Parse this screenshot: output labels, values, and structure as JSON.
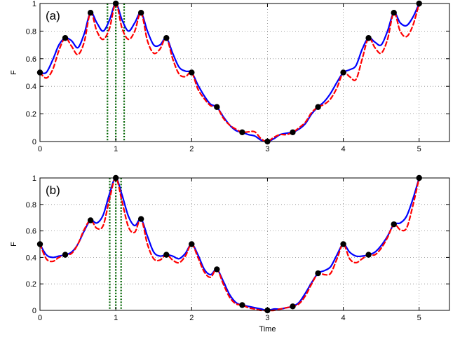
{
  "chart_data": [
    {
      "type": "line",
      "panel_label": "(a)",
      "xlabel": "",
      "ylabel": "F",
      "xlim": [
        0,
        5.4
      ],
      "ylim": [
        0,
        1
      ],
      "xticks": [
        "0",
        "1",
        "2",
        "3",
        "4",
        "5"
      ],
      "yticks": [
        "0",
        "0.2",
        "0.4",
        "0.6",
        "0.8",
        "1"
      ],
      "grid": true,
      "colors": {
        "solid": "#0000ff",
        "dashed": "#ff0000",
        "points": "#000000",
        "vlines": "#006400"
      },
      "points": {
        "x": [
          0,
          0.333,
          0.667,
          1,
          1.333,
          1.667,
          2,
          2.333,
          2.667,
          3,
          3.333,
          3.667,
          4,
          4.333,
          4.667,
          5
        ],
        "y": [
          0.5,
          0.75,
          0.933,
          1,
          0.933,
          0.75,
          0.5,
          0.25,
          0.067,
          0,
          0.067,
          0.25,
          0.5,
          0.75,
          0.933,
          1
        ]
      },
      "series": [
        {
          "style": "solid",
          "x": [
            0,
            0.083,
            0.167,
            0.25,
            0.333,
            0.417,
            0.5,
            0.583,
            0.667,
            0.75,
            0.833,
            0.917,
            1,
            1.083,
            1.167,
            1.25,
            1.333,
            1.417,
            1.5,
            1.583,
            1.667,
            1.75,
            1.833,
            1.917,
            2,
            2.083,
            2.167,
            2.25,
            2.333,
            2.417,
            2.5,
            2.583,
            2.667,
            2.75,
            2.833,
            2.917,
            3,
            3.083,
            3.167,
            3.25,
            3.333,
            3.417,
            3.5,
            3.583,
            3.667,
            3.75,
            3.833,
            3.917,
            4,
            4.083,
            4.167,
            4.25,
            4.333,
            4.417,
            4.5,
            4.583,
            4.667,
            4.75,
            4.833,
            4.917,
            5
          ],
          "y": [
            0.5,
            0.5,
            0.59,
            0.7,
            0.75,
            0.73,
            0.68,
            0.78,
            0.933,
            0.86,
            0.8,
            0.88,
            1,
            0.88,
            0.8,
            0.86,
            0.933,
            0.8,
            0.7,
            0.7,
            0.75,
            0.64,
            0.54,
            0.51,
            0.5,
            0.41,
            0.33,
            0.27,
            0.25,
            0.18,
            0.12,
            0.08,
            0.067,
            0.05,
            0.04,
            0.01,
            0,
            0.02,
            0.05,
            0.06,
            0.067,
            0.09,
            0.13,
            0.2,
            0.25,
            0.29,
            0.35,
            0.43,
            0.5,
            0.52,
            0.55,
            0.67,
            0.75,
            0.72,
            0.7,
            0.8,
            0.933,
            0.86,
            0.84,
            0.9,
            1
          ]
        },
        {
          "style": "dashed",
          "x": [
            0,
            0.083,
            0.167,
            0.25,
            0.333,
            0.417,
            0.5,
            0.583,
            0.667,
            0.75,
            0.833,
            0.917,
            1,
            1.083,
            1.167,
            1.25,
            1.333,
            1.417,
            1.5,
            1.583,
            1.667,
            1.75,
            1.833,
            1.917,
            2,
            2.083,
            2.167,
            2.25,
            2.333,
            2.417,
            2.5,
            2.583,
            2.667,
            2.75,
            2.833,
            2.917,
            3,
            3.083,
            3.167,
            3.25,
            3.333,
            3.417,
            3.5,
            3.583,
            3.667,
            3.75,
            3.833,
            3.917,
            4,
            4.083,
            4.167,
            4.25,
            4.333,
            4.417,
            4.5,
            4.583,
            4.667,
            4.75,
            4.833,
            4.917,
            5
          ],
          "y": [
            0.5,
            0.46,
            0.52,
            0.66,
            0.75,
            0.69,
            0.63,
            0.72,
            0.933,
            0.8,
            0.74,
            0.82,
            1,
            0.82,
            0.74,
            0.8,
            0.933,
            0.73,
            0.64,
            0.67,
            0.75,
            0.6,
            0.49,
            0.47,
            0.5,
            0.38,
            0.31,
            0.26,
            0.25,
            0.17,
            0.12,
            0.09,
            0.067,
            0.07,
            0.07,
            0.02,
            0,
            0.03,
            0.05,
            0.05,
            0.067,
            0.1,
            0.14,
            0.21,
            0.25,
            0.27,
            0.31,
            0.39,
            0.5,
            0.47,
            0.45,
            0.6,
            0.75,
            0.68,
            0.64,
            0.74,
            0.933,
            0.8,
            0.76,
            0.84,
            1
          ]
        }
      ],
      "vlines": [
        0.89,
        1,
        1.11
      ]
    },
    {
      "type": "line",
      "panel_label": "(b)",
      "xlabel": "Time",
      "ylabel": "F",
      "xlim": [
        0,
        5.4
      ],
      "ylim": [
        0,
        1
      ],
      "xticks": [
        "0",
        "1",
        "2",
        "3",
        "4",
        "5"
      ],
      "yticks": [
        "0",
        "0.2",
        "0.4",
        "0.6",
        "0.8",
        "1"
      ],
      "grid": true,
      "colors": {
        "solid": "#0000ff",
        "dashed": "#ff0000",
        "points": "#000000",
        "vlines": "#006400"
      },
      "points": {
        "x": [
          0,
          0.333,
          0.667,
          1,
          1.333,
          1.667,
          2,
          2.333,
          2.667,
          3,
          3.333,
          3.667,
          4,
          4.333,
          4.667,
          5
        ],
        "y": [
          0.5,
          0.42,
          0.68,
          1,
          0.69,
          0.42,
          0.5,
          0.31,
          0.04,
          0,
          0.03,
          0.28,
          0.5,
          0.42,
          0.65,
          1
        ]
      },
      "series": [
        {
          "style": "solid",
          "x": [
            0,
            0.083,
            0.167,
            0.25,
            0.333,
            0.417,
            0.5,
            0.583,
            0.667,
            0.75,
            0.833,
            0.917,
            1,
            1.083,
            1.167,
            1.25,
            1.333,
            1.417,
            1.5,
            1.583,
            1.667,
            1.75,
            1.833,
            1.917,
            2,
            2.083,
            2.167,
            2.25,
            2.333,
            2.417,
            2.5,
            2.583,
            2.667,
            2.75,
            2.833,
            2.917,
            3,
            3.083,
            3.167,
            3.25,
            3.333,
            3.417,
            3.5,
            3.583,
            3.667,
            3.75,
            3.833,
            3.917,
            4,
            4.083,
            4.167,
            4.25,
            4.333,
            4.417,
            4.5,
            4.583,
            4.667,
            4.75,
            4.833,
            4.917,
            5
          ],
          "y": [
            0.5,
            0.42,
            0.4,
            0.41,
            0.42,
            0.44,
            0.5,
            0.6,
            0.68,
            0.66,
            0.72,
            0.88,
            1,
            0.87,
            0.71,
            0.64,
            0.69,
            0.56,
            0.44,
            0.41,
            0.42,
            0.41,
            0.39,
            0.43,
            0.5,
            0.42,
            0.31,
            0.27,
            0.31,
            0.22,
            0.12,
            0.06,
            0.04,
            0.03,
            0.02,
            0.01,
            0,
            0.01,
            0.01,
            0.02,
            0.03,
            0.06,
            0.13,
            0.21,
            0.28,
            0.3,
            0.33,
            0.42,
            0.5,
            0.44,
            0.41,
            0.41,
            0.42,
            0.44,
            0.49,
            0.56,
            0.65,
            0.66,
            0.71,
            0.84,
            1
          ]
        },
        {
          "style": "dashed",
          "x": [
            0,
            0.083,
            0.167,
            0.25,
            0.333,
            0.417,
            0.5,
            0.583,
            0.667,
            0.75,
            0.833,
            0.917,
            1,
            1.083,
            1.167,
            1.25,
            1.333,
            1.417,
            1.5,
            1.583,
            1.667,
            1.75,
            1.833,
            1.917,
            2,
            2.083,
            2.167,
            2.25,
            2.333,
            2.417,
            2.5,
            2.583,
            2.667,
            2.75,
            2.833,
            2.917,
            3,
            3.083,
            3.167,
            3.25,
            3.333,
            3.417,
            3.5,
            3.583,
            3.667,
            3.75,
            3.833,
            3.917,
            4,
            4.083,
            4.167,
            4.25,
            4.333,
            4.417,
            4.5,
            4.583,
            4.667,
            4.75,
            4.833,
            4.917,
            5
          ],
          "y": [
            0.5,
            0.39,
            0.37,
            0.4,
            0.42,
            0.43,
            0.5,
            0.61,
            0.68,
            0.62,
            0.64,
            0.84,
            1,
            0.82,
            0.63,
            0.59,
            0.69,
            0.5,
            0.39,
            0.38,
            0.42,
            0.38,
            0.36,
            0.41,
            0.5,
            0.4,
            0.29,
            0.25,
            0.31,
            0.2,
            0.1,
            0.05,
            0.04,
            0.02,
            0.01,
            0,
            0,
            0,
            0.01,
            0.02,
            0.03,
            0.05,
            0.11,
            0.2,
            0.28,
            0.27,
            0.28,
            0.39,
            0.5,
            0.39,
            0.36,
            0.39,
            0.42,
            0.42,
            0.47,
            0.55,
            0.65,
            0.61,
            0.62,
            0.79,
            1
          ]
        }
      ],
      "vlines": [
        0.92,
        1,
        1.07
      ]
    }
  ]
}
